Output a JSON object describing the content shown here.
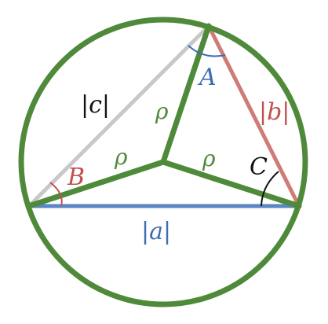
{
  "diagram": {
    "labels": {
      "vertex_a": "A",
      "vertex_b": "B",
      "vertex_c": "C",
      "side_a": "|a|",
      "side_b": "|b|",
      "side_c": "|c|",
      "radius_ab": "ρ",
      "radius_ac": "ρ",
      "radius_bc": "ρ"
    },
    "colors": {
      "circle": "#4f8a3a",
      "radius": "#4f8a3a",
      "side_a": "#5a86c6",
      "side_b": "#cf7b76",
      "side_c": "#c8c8c8",
      "label_green": "#4f8a3a",
      "label_blue": "#3f6db3",
      "label_red": "#c0504d",
      "label_black": "#111111"
    }
  }
}
